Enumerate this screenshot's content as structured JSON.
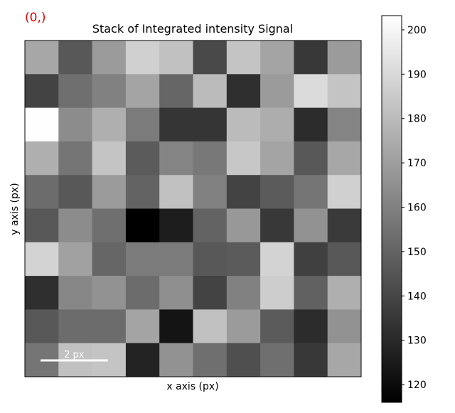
{
  "chart_data": {
    "type": "heatmap",
    "title": "Stack of Integrated intensity Signal",
    "corner_label": "(0,)",
    "xlabel": "x axis (px)",
    "ylabel": "y axis (px)",
    "colormap": "gray",
    "scalebar": {
      "label": "2 px",
      "length": 2
    },
    "values": [
      [
        173,
        146,
        169,
        187,
        182,
        141,
        183,
        172,
        135,
        169
      ],
      [
        139,
        154,
        160,
        172,
        151,
        180,
        132,
        169,
        191,
        183
      ],
      [
        203,
        164,
        176,
        158,
        134,
        134,
        180,
        175,
        131,
        161
      ],
      [
        176,
        156,
        183,
        147,
        161,
        157,
        184,
        172,
        146,
        173
      ],
      [
        153,
        146,
        169,
        150,
        182,
        160,
        139,
        147,
        156,
        187
      ],
      [
        146,
        164,
        154,
        116,
        126,
        150,
        168,
        135,
        166,
        136
      ],
      [
        188,
        171,
        151,
        158,
        158,
        146,
        147,
        188,
        138,
        146
      ],
      [
        132,
        162,
        166,
        153,
        165,
        139,
        160,
        186,
        149,
        176
      ],
      [
        146,
        153,
        153,
        172,
        123,
        182,
        169,
        147,
        131,
        166
      ],
      [
        156,
        182,
        183,
        128,
        166,
        154,
        143,
        154,
        135,
        173
      ]
    ],
    "vlim": [
      116,
      203.2
    ],
    "cticks": [
      120,
      130,
      140,
      150,
      160,
      170,
      180,
      190,
      200
    ]
  }
}
